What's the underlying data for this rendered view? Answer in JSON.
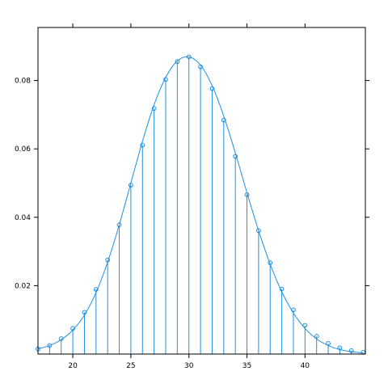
{
  "colors": {
    "series": "#1f8fe0",
    "axis": "#000000",
    "background": "#ffffff"
  },
  "chart_data": {
    "type": "scatter",
    "subtype": "pmf-with-density-curve",
    "title": "",
    "xlabel": "",
    "ylabel": "",
    "xlim": [
      17,
      45.2
    ],
    "ylim": [
      0,
      0.0955
    ],
    "grid": false,
    "legend": "none",
    "x_ticks": [
      20,
      25,
      30,
      35,
      40
    ],
    "x_tick_labels": [
      "20",
      "25",
      "30",
      "35",
      "40"
    ],
    "y_ticks": [
      0.02,
      0.04,
      0.06,
      0.08
    ],
    "y_tick_labels": [
      "0.02",
      "0.04",
      "0.06",
      "0.08"
    ],
    "series": [
      {
        "render": "points-with-vertical-lines",
        "x": [
          17,
          18,
          19,
          20,
          21,
          22,
          23,
          24,
          25,
          26,
          27,
          28,
          29,
          30,
          31,
          32,
          33,
          34,
          35,
          36,
          37,
          38,
          39,
          40,
          41,
          42,
          43,
          44,
          45
        ],
        "y": [
          0.0015,
          0.0025,
          0.0045,
          0.0075,
          0.0122,
          0.0189,
          0.0275,
          0.0378,
          0.0494,
          0.0611,
          0.0718,
          0.0803,
          0.0855,
          0.0869,
          0.084,
          0.0776,
          0.0684,
          0.0578,
          0.0466,
          0.0361,
          0.0267,
          0.019,
          0.0129,
          0.0084,
          0.0052,
          0.0031,
          0.0018,
          0.001,
          0.0005
        ]
      },
      {
        "render": "smooth-curve",
        "x": [
          17,
          18,
          19,
          20,
          21,
          22,
          23,
          24,
          25,
          26,
          27,
          28,
          29,
          30,
          31,
          32,
          33,
          34,
          35,
          36,
          37,
          38,
          39,
          40,
          41,
          42,
          43,
          44,
          45
        ],
        "y": [
          0.0015,
          0.0025,
          0.0042,
          0.007,
          0.0114,
          0.018,
          0.0269,
          0.0378,
          0.05,
          0.0622,
          0.0729,
          0.0809,
          0.0857,
          0.0869,
          0.0845,
          0.0785,
          0.0696,
          0.0588,
          0.0472,
          0.0361,
          0.0263,
          0.0182,
          0.012,
          0.0075,
          0.0044,
          0.0025,
          0.0013,
          0.0007,
          0.0003
        ]
      }
    ]
  }
}
